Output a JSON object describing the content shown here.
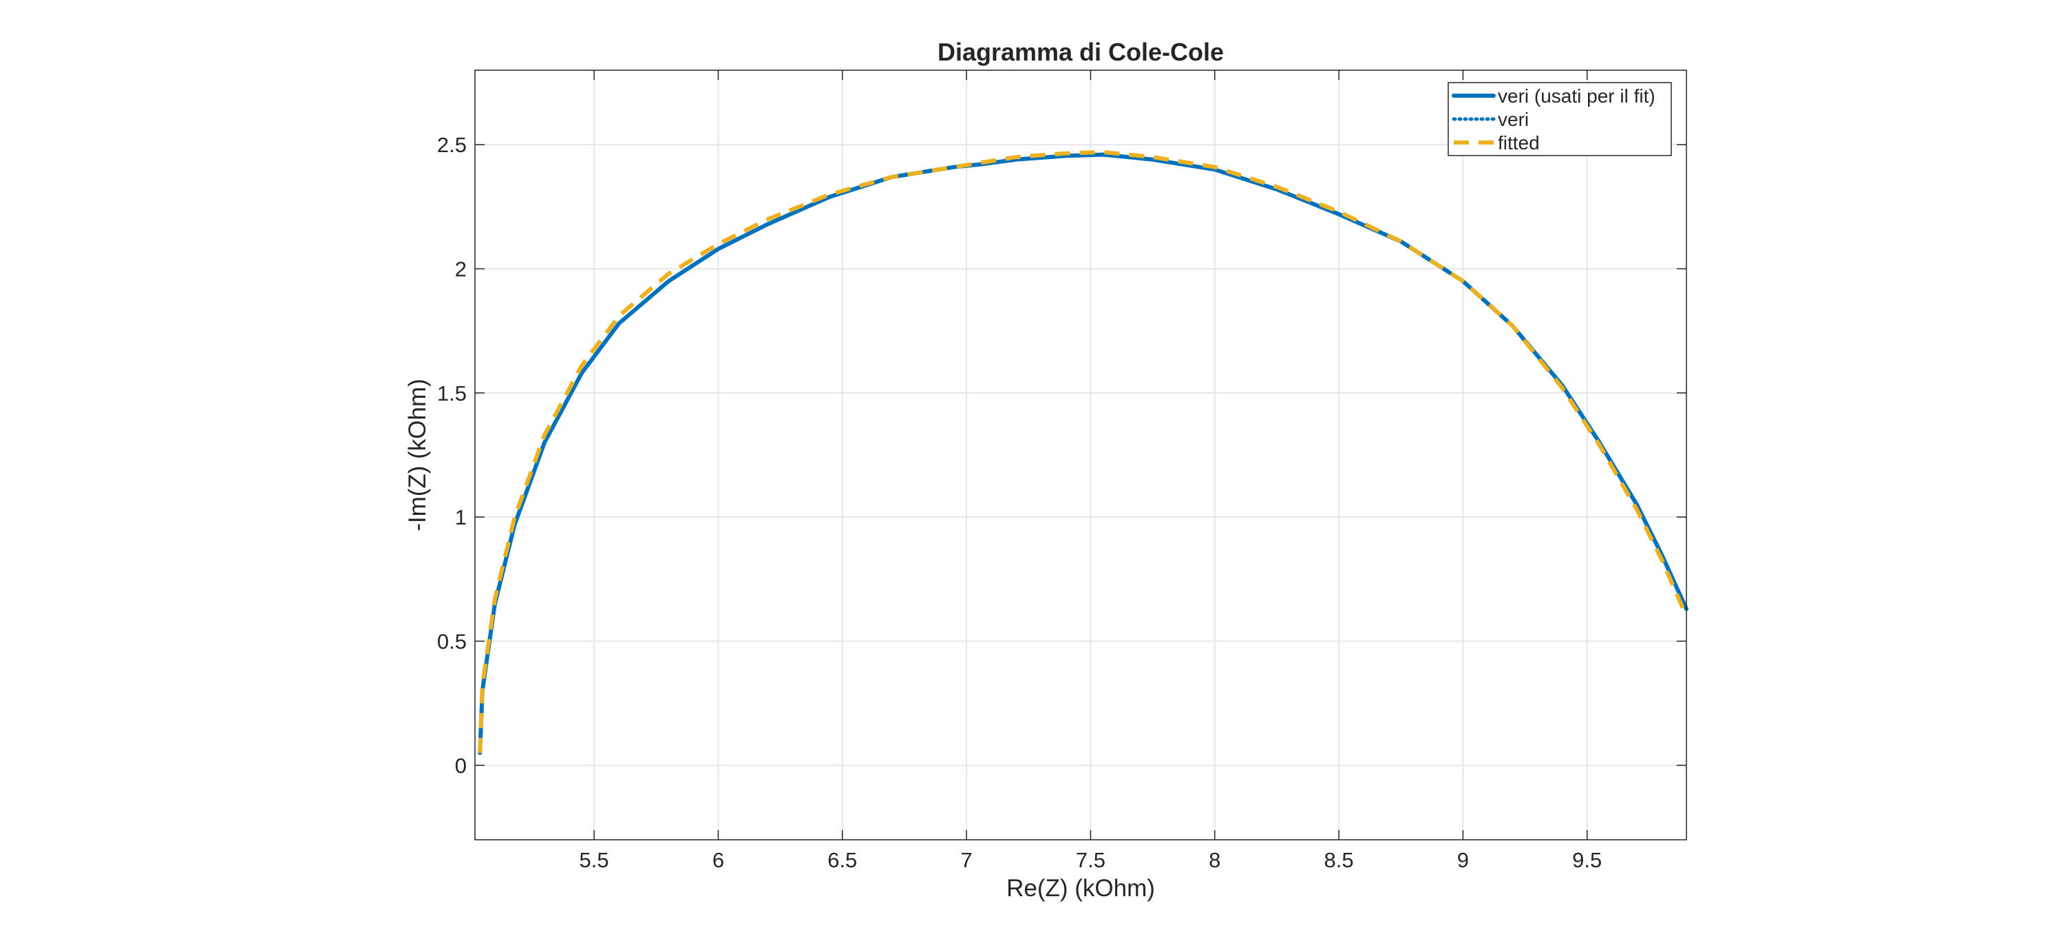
{
  "chart_data": {
    "type": "line",
    "title": "Diagramma di Cole-Cole",
    "xlabel": "Re(Z) (kOhm)",
    "ylabel": "-Im(Z) (kOhm)",
    "xlim": [
      5.02,
      9.9
    ],
    "ylim": [
      -0.3,
      2.8
    ],
    "xticks": [
      "5.5",
      "6",
      "6.5",
      "7",
      "7.5",
      "8",
      "8.5",
      "9",
      "9.5"
    ],
    "yticks": [
      "0",
      "0.5",
      "1",
      "1.5",
      "2",
      "2.5"
    ],
    "grid": true,
    "legend_position": "top-right",
    "series": [
      {
        "name": "veri (usati per il fit)",
        "style": "solid",
        "color": "#0072BD",
        "x": [
          5.04,
          5.05,
          5.1,
          5.18,
          5.3,
          5.45,
          5.6,
          5.8,
          6.0,
          6.2,
          6.45,
          6.7,
          6.95,
          7.05,
          7.2,
          7.4,
          7.55,
          7.75,
          8.0,
          8.25,
          8.5,
          8.75,
          9.0,
          9.2,
          9.4,
          9.55,
          9.7,
          9.8,
          9.9
        ],
        "y": [
          0.05,
          0.3,
          0.65,
          0.97,
          1.3,
          1.58,
          1.78,
          1.95,
          2.08,
          2.18,
          2.29,
          2.37,
          2.41,
          2.42,
          2.44,
          2.455,
          2.46,
          2.44,
          2.4,
          2.32,
          2.22,
          2.11,
          1.95,
          1.77,
          1.53,
          1.3,
          1.05,
          0.85,
          0.63
        ]
      },
      {
        "name": "veri",
        "style": "dotted",
        "color": "#0072BD",
        "x": [
          5.04,
          5.05,
          5.1,
          5.18,
          5.3,
          5.45,
          5.6,
          5.8,
          6.0,
          6.2,
          6.45,
          6.7,
          6.95,
          7.05,
          7.2,
          7.4,
          7.55,
          7.75,
          8.0,
          8.25,
          8.5,
          8.75,
          9.0,
          9.2,
          9.4,
          9.55,
          9.7,
          9.8,
          9.9
        ],
        "y": [
          0.05,
          0.3,
          0.65,
          0.97,
          1.3,
          1.58,
          1.78,
          1.95,
          2.08,
          2.18,
          2.29,
          2.37,
          2.41,
          2.42,
          2.44,
          2.455,
          2.46,
          2.44,
          2.4,
          2.32,
          2.22,
          2.11,
          1.95,
          1.77,
          1.53,
          1.3,
          1.05,
          0.85,
          0.63
        ]
      },
      {
        "name": "fitted",
        "style": "dashed",
        "color": "#EDB120",
        "x": [
          5.04,
          5.05,
          5.1,
          5.18,
          5.3,
          5.45,
          5.6,
          5.8,
          6.0,
          6.2,
          6.45,
          6.7,
          6.95,
          7.2,
          7.4,
          7.55,
          7.75,
          8.0,
          8.25,
          8.5,
          8.75,
          9.0,
          9.2,
          9.4,
          9.55,
          9.7,
          9.8,
          9.9
        ],
        "y": [
          0.05,
          0.32,
          0.67,
          1.0,
          1.33,
          1.61,
          1.81,
          1.98,
          2.1,
          2.2,
          2.3,
          2.37,
          2.41,
          2.45,
          2.465,
          2.47,
          2.45,
          2.41,
          2.33,
          2.23,
          2.11,
          1.95,
          1.77,
          1.52,
          1.29,
          1.03,
          0.83,
          0.6
        ]
      }
    ]
  }
}
